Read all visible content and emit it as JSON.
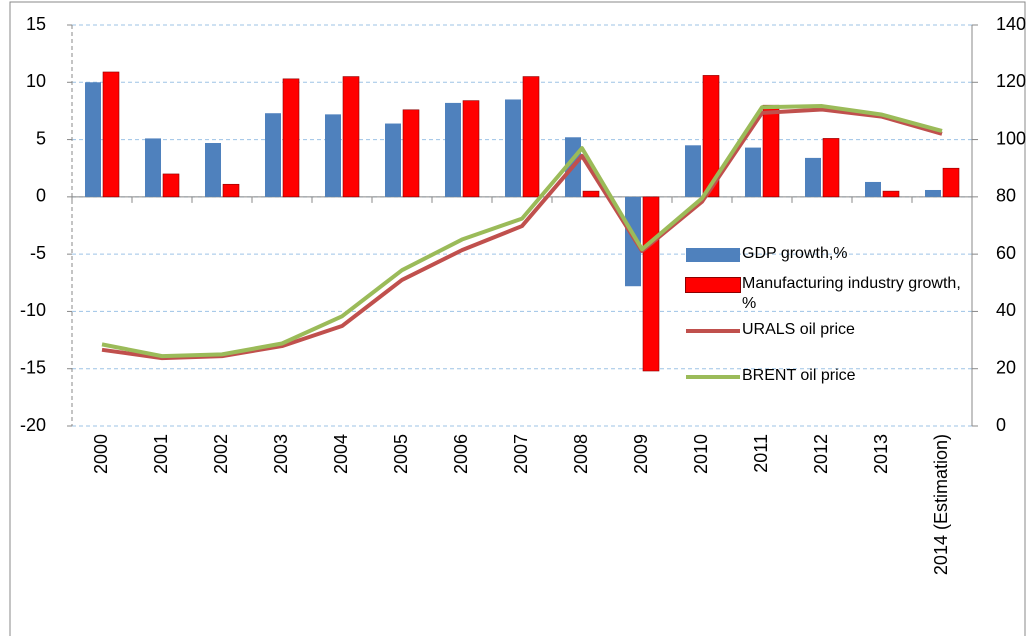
{
  "chart_data": {
    "type": "bar-line",
    "categories": [
      "2000",
      "2001",
      "2002",
      "2003",
      "2004",
      "2005",
      "2006",
      "2007",
      "2008",
      "2009",
      "2010",
      "2011",
      "2012",
      "2013",
      "2014 (Estimation)"
    ],
    "series": [
      {
        "name": "GDP growth,%",
        "type": "bar",
        "color": "#4f81bd",
        "values": [
          10.0,
          5.1,
          4.7,
          7.3,
          7.2,
          6.4,
          8.2,
          8.5,
          5.2,
          -7.8,
          4.5,
          4.3,
          3.4,
          1.3,
          0.6
        ]
      },
      {
        "name": "Manufacturing industry growth, %",
        "type": "bar",
        "color": "#ff0000",
        "values": [
          10.9,
          2.0,
          1.1,
          10.3,
          10.5,
          7.6,
          8.4,
          10.5,
          0.5,
          -15.2,
          10.6,
          8.0,
          5.1,
          0.5,
          2.5
        ]
      },
      {
        "name": "URALS oil price",
        "type": "line",
        "axis": "y2",
        "color": "#c0504d",
        "values": [
          26.6,
          23.7,
          24.4,
          27.9,
          34.9,
          51.0,
          61.4,
          69.8,
          94.3,
          61.1,
          78.3,
          109.3,
          110.5,
          108.0,
          102.0
        ]
      },
      {
        "name": "BRENT oil price",
        "type": "line",
        "axis": "y2",
        "color": "#9bbb59",
        "values": [
          28.5,
          24.4,
          25.0,
          28.8,
          38.3,
          54.4,
          65.1,
          72.4,
          97.0,
          61.7,
          79.5,
          111.3,
          111.7,
          108.7,
          103.0
        ]
      }
    ],
    "ylim": [
      -20,
      15
    ],
    "yticks": [
      -20,
      -15,
      -10,
      -5,
      0,
      5,
      10,
      15
    ],
    "y2lim": [
      0,
      140
    ],
    "y2ticks": [
      0,
      20,
      40,
      60,
      80,
      100,
      120,
      140
    ],
    "grid": true
  }
}
